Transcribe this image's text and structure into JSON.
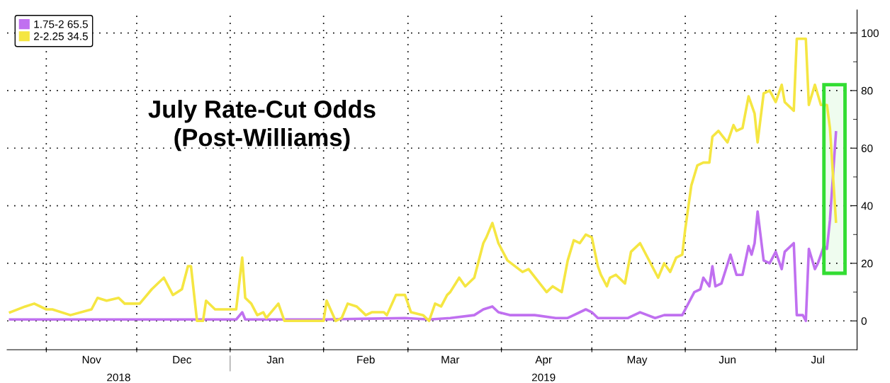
{
  "chart_data": {
    "type": "line",
    "title": "July Rate-Cut Odds\n(Post-Williams)",
    "xlim": [
      "2018-10-19",
      "2019-07-28"
    ],
    "xticks": [
      {
        "value": "2018-11-01",
        "label": null
      },
      {
        "value": "2018-12-01",
        "label": null
      },
      {
        "value": "2019-01-01",
        "label": null
      },
      {
        "value": "2019-02-01",
        "label": null
      },
      {
        "value": "2019-03-01",
        "label": null
      },
      {
        "value": "2019-04-01",
        "label": null
      },
      {
        "value": "2019-05-01",
        "label": null
      },
      {
        "value": "2019-06-01",
        "label": null
      },
      {
        "value": "2019-07-01",
        "label": null
      },
      {
        "value": "2018-11-16",
        "label": "Nov"
      },
      {
        "value": "2018-12-16",
        "label": "Dec"
      },
      {
        "value": "2019-01-16",
        "label": "Jan"
      },
      {
        "value": "2019-02-15",
        "label": "Feb"
      },
      {
        "value": "2019-03-15",
        "label": "Mar"
      },
      {
        "value": "2019-04-15",
        "label": "Apr"
      },
      {
        "value": "2019-05-16",
        "label": "May"
      },
      {
        "value": "2019-06-15",
        "label": "Jun"
      },
      {
        "value": "2019-07-15",
        "label": "Jul"
      }
    ],
    "x2lim": [
      "2018-10-19",
      "2019-07-28"
    ],
    "x2ticks": [
      {
        "value": "2018-11-25",
        "label": "2018"
      },
      {
        "value": "2019-01-01",
        "label": null
      },
      {
        "value": "2019-04-15",
        "label": "2019"
      }
    ],
    "ylim": [
      -10,
      108
    ],
    "yticks": [
      0,
      20,
      40,
      60,
      80,
      100,
      {
        "value": 10,
        "label": null
      },
      {
        "value": 30,
        "label": null
      },
      {
        "value": 50,
        "label": null
      },
      {
        "value": 70,
        "label": null
      },
      {
        "value": 90,
        "label": null
      }
    ],
    "grid": true,
    "legend": "top left",
    "marker": "none",
    "line_style": "solid",
    "bands": [
      {
        "axis": "x",
        "from": "2019-07-17",
        "to": "2019-07-24",
        "color": "#33dd33"
      }
    ],
    "series": [
      {
        "name": "1.75-2 65.5",
        "color": "#c070f0",
        "x": [
          "2018-10-20",
          "2019-01-03",
          "2019-01-05",
          "2019-01-06",
          "2019-02-01",
          "2019-02-28",
          "2019-03-08",
          "2019-03-15",
          "2019-03-23",
          "2019-03-26",
          "2019-03-29",
          "2019-03-31",
          "2019-04-04",
          "2019-04-12",
          "2019-04-19",
          "2019-04-23",
          "2019-04-25",
          "2019-04-29",
          "2019-05-01",
          "2019-05-03",
          "2019-05-13",
          "2019-05-17",
          "2019-05-22",
          "2019-05-25",
          "2019-05-31",
          "2019-06-01",
          "2019-06-04",
          "2019-06-06",
          "2019-06-07",
          "2019-06-09",
          "2019-06-10",
          "2019-06-11",
          "2019-06-13",
          "2019-06-16",
          "2019-06-18",
          "2019-06-20",
          "2019-06-22",
          "2019-06-23",
          "2019-06-24",
          "2019-06-25",
          "2019-06-27",
          "2019-06-29",
          "2019-07-01",
          "2019-07-03",
          "2019-07-04",
          "2019-07-07",
          "2019-07-08",
          "2019-07-10",
          "2019-07-11",
          "2019-07-12",
          "2019-07-14",
          "2019-07-15",
          "2019-07-17",
          "2019-07-18",
          "2019-07-19",
          "2019-07-21"
        ],
        "values": [
          0.5,
          0.5,
          3,
          0.5,
          0.5,
          1,
          0.5,
          1,
          2,
          4,
          5,
          3,
          2,
          2,
          1,
          1,
          2,
          4,
          3,
          1,
          1,
          3,
          1,
          2,
          2,
          4,
          10,
          11,
          15,
          12,
          19,
          12,
          13,
          23,
          16,
          16,
          26,
          23,
          27,
          38,
          21,
          20,
          24,
          18,
          24,
          27,
          2,
          2,
          0,
          25,
          18,
          20,
          26,
          25,
          35,
          65.5
        ]
      },
      {
        "name": "2-2.25 34.5",
        "color": "#f5e642",
        "x": [
          "2018-10-20",
          "2018-10-25",
          "2018-10-28",
          "2018-11-01",
          "2018-11-03",
          "2018-11-09",
          "2018-11-16",
          "2018-11-18",
          "2018-11-21",
          "2018-11-25",
          "2018-11-27",
          "2018-12-02",
          "2018-12-06",
          "2018-12-10",
          "2018-12-13",
          "2018-12-16",
          "2018-12-18",
          "2018-12-19",
          "2018-12-21",
          "2018-12-23",
          "2018-12-24",
          "2018-12-27",
          "2018-12-30",
          "2019-01-03",
          "2019-01-05",
          "2019-01-06",
          "2019-01-08",
          "2019-01-10",
          "2019-01-12",
          "2019-01-13",
          "2019-01-17",
          "2019-01-19",
          "2019-02-01",
          "2019-02-02",
          "2019-02-05",
          "2019-02-07",
          "2019-02-09",
          "2019-02-12",
          "2019-02-15",
          "2019-02-17",
          "2019-02-21",
          "2019-02-22",
          "2019-02-25",
          "2019-02-28",
          "2019-03-02",
          "2019-03-06",
          "2019-03-08",
          "2019-03-10",
          "2019-03-12",
          "2019-03-14",
          "2019-03-15",
          "2019-03-18",
          "2019-03-20",
          "2019-03-23",
          "2019-03-26",
          "2019-03-27",
          "2019-03-29",
          "2019-03-31",
          "2019-04-03",
          "2019-04-08",
          "2019-04-10",
          "2019-04-13",
          "2019-04-16",
          "2019-04-18",
          "2019-04-21",
          "2019-04-23",
          "2019-04-25",
          "2019-04-27",
          "2019-04-29",
          "2019-05-01",
          "2019-05-03",
          "2019-05-04",
          "2019-05-06",
          "2019-05-07",
          "2019-05-09",
          "2019-05-12",
          "2019-05-14",
          "2019-05-17",
          "2019-05-19",
          "2019-05-23",
          "2019-05-25",
          "2019-05-27",
          "2019-05-29",
          "2019-05-31",
          "2019-06-01",
          "2019-06-03",
          "2019-06-05",
          "2019-06-07",
          "2019-06-09",
          "2019-06-10",
          "2019-06-12",
          "2019-06-15",
          "2019-06-17",
          "2019-06-18",
          "2019-06-20",
          "2019-06-22",
          "2019-06-24",
          "2019-06-25",
          "2019-06-27",
          "2019-06-29",
          "2019-07-01",
          "2019-07-03",
          "2019-07-04",
          "2019-07-07",
          "2019-07-08",
          "2019-07-11",
          "2019-07-12",
          "2019-07-14",
          "2019-07-16",
          "2019-07-18",
          "2019-07-19",
          "2019-07-21"
        ],
        "values": [
          3,
          5,
          6,
          4,
          4,
          2,
          4,
          8,
          7,
          8,
          6,
          6,
          11,
          15,
          9,
          11,
          19,
          19,
          0,
          0,
          7,
          4,
          4,
          4,
          22,
          8,
          6,
          2,
          3,
          1,
          6,
          0,
          0,
          7,
          0,
          1,
          6,
          5,
          2,
          3,
          3,
          2,
          9,
          9,
          3,
          2,
          0,
          6,
          5,
          9,
          10,
          15,
          12,
          15,
          27,
          29,
          34,
          27,
          21,
          17,
          18,
          14,
          10,
          12,
          10,
          21,
          28,
          27,
          30,
          29,
          19,
          16,
          12,
          15,
          16,
          13,
          24,
          27,
          23,
          15,
          20,
          17,
          22,
          23,
          32,
          47,
          54,
          55,
          55,
          64,
          66,
          62,
          68,
          66,
          67,
          78,
          72,
          62,
          79,
          80,
          76,
          82,
          76,
          73,
          98,
          98,
          75,
          82,
          75,
          75,
          67,
          34.5
        ]
      }
    ]
  }
}
